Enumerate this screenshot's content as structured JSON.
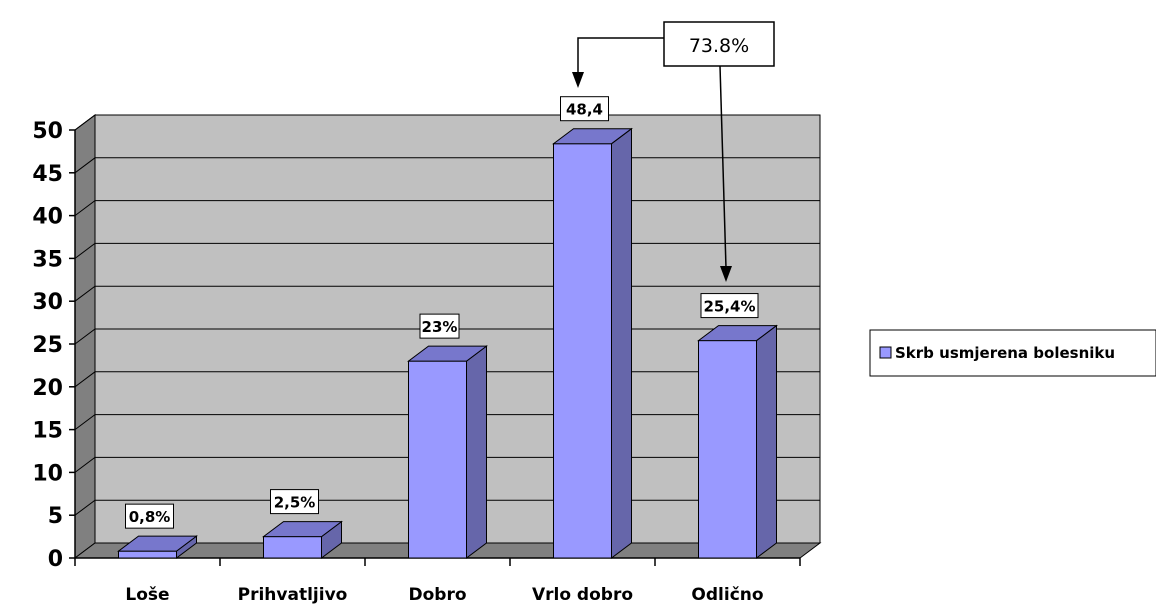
{
  "chart_data": {
    "type": "bar",
    "categories": [
      "Loše",
      "Prihvatljivo",
      "Dobro",
      "Vrlo dobro",
      "Odlično"
    ],
    "series": [
      {
        "name": "Skrb usmjerena bolesniku",
        "values": [
          0.8,
          2.5,
          23,
          48.4,
          25.4
        ]
      }
    ],
    "data_labels": [
      "0,8%",
      "2,5%",
      "23%",
      "48,4",
      "25,4%"
    ],
    "ylim": [
      0,
      50
    ],
    "yticks": [
      0,
      5,
      10,
      15,
      20,
      25,
      30,
      35,
      40,
      45,
      50
    ],
    "grid": true,
    "legend": "right",
    "annotation": {
      "text": "73.8%",
      "targets": [
        "Vrlo dobro",
        "Odlično"
      ]
    },
    "colors": {
      "bar_front": "#9999ff",
      "bar_side": "#6666aa",
      "bar_top": "#7777cc",
      "wall": "#c0c0c0",
      "wall_side": "#808080",
      "floor": "#808080"
    }
  }
}
